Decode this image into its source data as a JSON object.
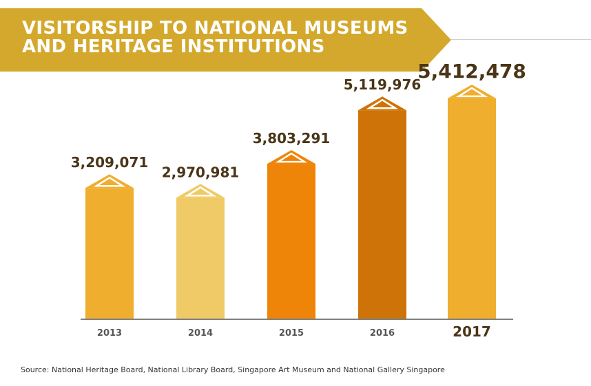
{
  "header": {
    "title_line1": "VISITORSHIP TO NATIONAL MUSEUMS",
    "title_line2": "AND HERITAGE INSTITUTIONS"
  },
  "colors": {
    "banner": "#D4A82C",
    "axis": "#808080",
    "label_dark": "#4A3518",
    "label_year": "#555555"
  },
  "chart_data": {
    "type": "bar",
    "categories": [
      "2013",
      "2014",
      "2015",
      "2016",
      "2017"
    ],
    "values": [
      3209071,
      2970981,
      3803291,
      5119976,
      5412478
    ],
    "value_labels": [
      "3,209,071",
      "2,970,981",
      "3,803,291",
      "5,119,976",
      "5,412,478"
    ],
    "bar_colors": [
      "#F0AE2E",
      "#F0CA66",
      "#EE8508",
      "#CE7307",
      "#F0AE2E"
    ],
    "highlight_index": 4,
    "ylim": [
      0,
      5800000
    ],
    "legend": "none",
    "grid": false
  },
  "source": "Source: National Heritage Board, National Library Board, Singapore Art Museum and National Gallery Singapore"
}
